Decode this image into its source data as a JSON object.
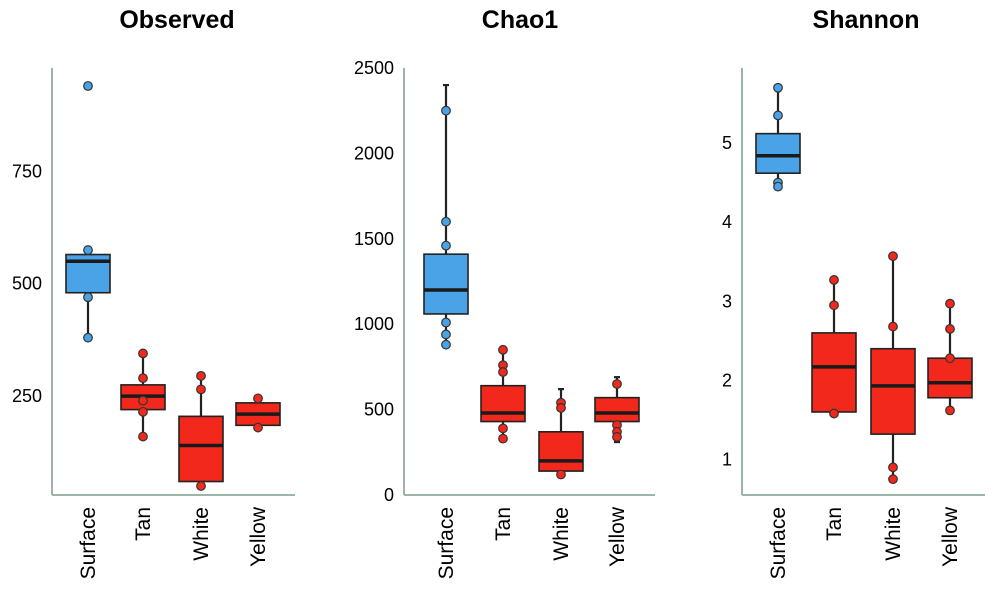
{
  "colors": {
    "surface": "#4aa3e6",
    "others": "#f3281d",
    "axis": "#9cb5a9",
    "median": "#1a1a1a",
    "whisker": "#222222"
  },
  "chart_data": [
    {
      "type": "box",
      "title": "Observed",
      "categories": [
        "Surface",
        "Tan",
        "White",
        "Yellow"
      ],
      "yticks": [
        250,
        500,
        750
      ],
      "ylim": [
        30,
        980
      ],
      "boxes": [
        {
          "name": "Surface",
          "whisker_low": 380,
          "q1": 480,
          "median": 550,
          "q3": 565,
          "whisker_high": 565,
          "points": [
            940,
            575,
            470,
            380
          ]
        },
        {
          "name": "Tan",
          "whisker_low": 160,
          "q1": 220,
          "median": 250,
          "q3": 275,
          "whisker_high": 345,
          "points": [
            345,
            290,
            240,
            215,
            160
          ]
        },
        {
          "name": "White",
          "whisker_low": 50,
          "q1": 60,
          "median": 140,
          "q3": 205,
          "whisker_high": 295,
          "points": [
            295,
            265,
            50
          ]
        },
        {
          "name": "Yellow",
          "whisker_low": 180,
          "q1": 185,
          "median": 210,
          "q3": 235,
          "whisker_high": 245,
          "points": [
            245,
            180
          ]
        }
      ]
    },
    {
      "type": "box",
      "title": "Chao1",
      "categories": [
        "Surface",
        "Tan",
        "White",
        "Yellow"
      ],
      "yticks": [
        0,
        500,
        1000,
        1500,
        2000,
        2500
      ],
      "ylim": [
        0,
        2500
      ],
      "boxes": [
        {
          "name": "Surface",
          "whisker_low": 880,
          "q1": 1060,
          "median": 1200,
          "q3": 1410,
          "whisker_high": 2400,
          "points": [
            2250,
            1600,
            1460,
            1010,
            940,
            880
          ]
        },
        {
          "name": "Tan",
          "whisker_low": 330,
          "q1": 430,
          "median": 480,
          "q3": 640,
          "whisker_high": 850,
          "points": [
            850,
            760,
            720,
            390,
            330
          ]
        },
        {
          "name": "White",
          "whisker_low": 110,
          "q1": 140,
          "median": 200,
          "q3": 370,
          "whisker_high": 620,
          "points": [
            540,
            510,
            120
          ]
        },
        {
          "name": "Yellow",
          "whisker_low": 310,
          "q1": 430,
          "median": 480,
          "q3": 570,
          "whisker_high": 690,
          "points": [
            650,
            410,
            370,
            340
          ]
        }
      ]
    },
    {
      "type": "box",
      "title": "Shannon",
      "categories": [
        "Surface",
        "Tan",
        "White",
        "Yellow"
      ],
      "yticks": [
        1,
        2,
        3,
        4,
        5
      ],
      "ylim": [
        0.55,
        5.95
      ],
      "boxes": [
        {
          "name": "Surface",
          "whisker_low": 4.45,
          "q1": 4.62,
          "median": 4.84,
          "q3": 5.12,
          "whisker_high": 5.7,
          "points": [
            5.7,
            5.35,
            4.5,
            4.45
          ]
        },
        {
          "name": "Tan",
          "whisker_low": 1.55,
          "q1": 1.6,
          "median": 2.17,
          "q3": 2.6,
          "whisker_high": 3.27,
          "points": [
            3.27,
            2.95,
            1.58
          ]
        },
        {
          "name": "White",
          "whisker_low": 0.75,
          "q1": 1.32,
          "median": 1.93,
          "q3": 2.4,
          "whisker_high": 3.57,
          "points": [
            3.57,
            2.68,
            0.9,
            0.75
          ]
        },
        {
          "name": "Yellow",
          "whisker_low": 1.58,
          "q1": 1.78,
          "median": 1.97,
          "q3": 2.28,
          "whisker_high": 2.97,
          "points": [
            2.97,
            2.65,
            2.28,
            1.62
          ]
        }
      ]
    }
  ]
}
